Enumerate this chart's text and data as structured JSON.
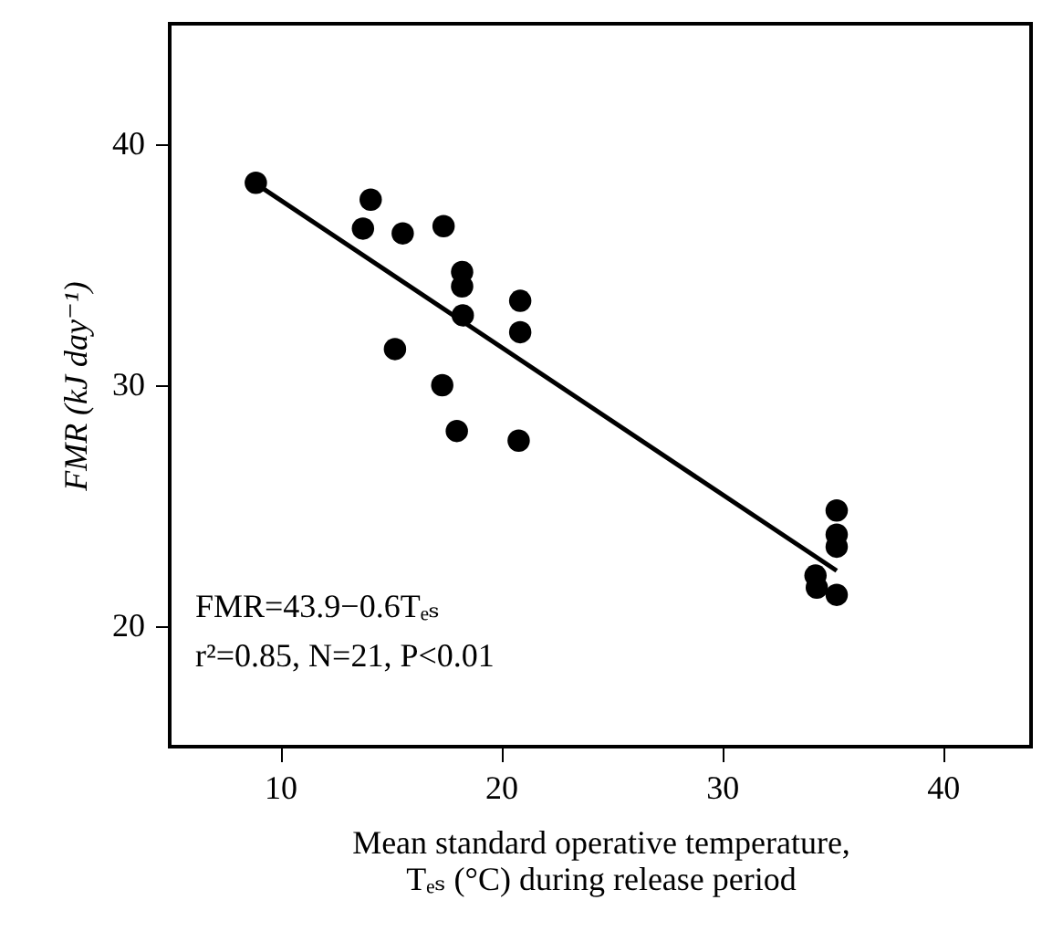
{
  "chart_data": {
    "type": "scatter",
    "xlabel": "Mean standard operative temperature, Tₑₛ (°C) during release period",
    "ylabel": "FMR (kJ day⁻¹)",
    "xlim": [
      5,
      44
    ],
    "ylim": [
      15,
      45
    ],
    "xticks": [
      10,
      20,
      30,
      40
    ],
    "yticks": [
      20,
      30,
      40
    ],
    "grid": false,
    "marker": "circle",
    "annotations": [
      "FMR=43.9−0.6Tₑₛ",
      "r²=0.85, N=21, P<0.01"
    ],
    "series": [
      {
        "color": "#000000",
        "x": [
          8.9,
          14.1,
          13.75,
          15.55,
          17.4,
          18.24,
          18.24,
          18.27,
          20.87,
          20.87,
          15.2,
          17.34,
          18.0,
          20.8,
          35.2,
          35.2,
          35.2,
          34.24,
          34.3,
          35.2
        ],
        "values": [
          38.4,
          37.7,
          36.5,
          36.3,
          36.6,
          34.7,
          34.1,
          32.9,
          33.5,
          32.2,
          31.5,
          30.0,
          28.1,
          27.7,
          24.8,
          23.8,
          23.3,
          22.1,
          21.6,
          21.3
        ]
      },
      {
        "type": "line",
        "color": "#000000",
        "line_style": "solid",
        "marker": "none",
        "x": [
          9.0,
          35.2
        ],
        "values": [
          38.3,
          22.3
        ]
      }
    ]
  }
}
